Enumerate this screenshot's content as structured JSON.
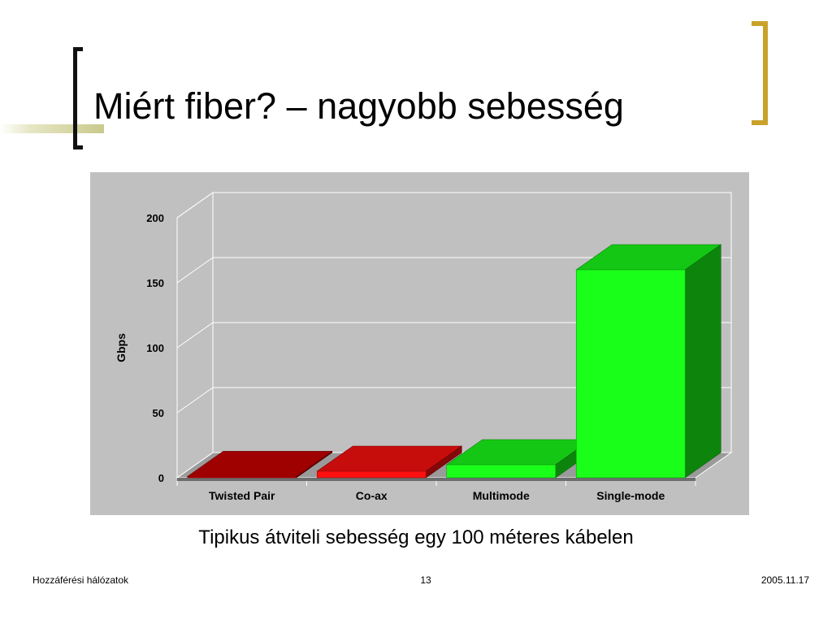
{
  "slide": {
    "title": "Miért fiber? – nagyobb sebesség",
    "caption": "Tipikus átviteli sebesség egy 100 méteres kábelen",
    "footer_left": "Hozzáférési hálózatok",
    "page_number": "13",
    "footer_date": "2005.11.17"
  },
  "chart_data": {
    "type": "bar",
    "style": "3d",
    "categories": [
      "Twisted Pair",
      "Co-ax",
      "Multimode",
      "Single-mode"
    ],
    "values": [
      1,
      5,
      10,
      160
    ],
    "ylabel": "Gbps",
    "ylim": [
      0,
      200
    ],
    "yticks": [
      0,
      50,
      100,
      150,
      200
    ],
    "grid": true,
    "legend": "none",
    "colors": [
      "#cc0000",
      "#ff1010",
      "#19ff19",
      "#19ff19"
    ],
    "plot_background": "#c0c0c0"
  }
}
